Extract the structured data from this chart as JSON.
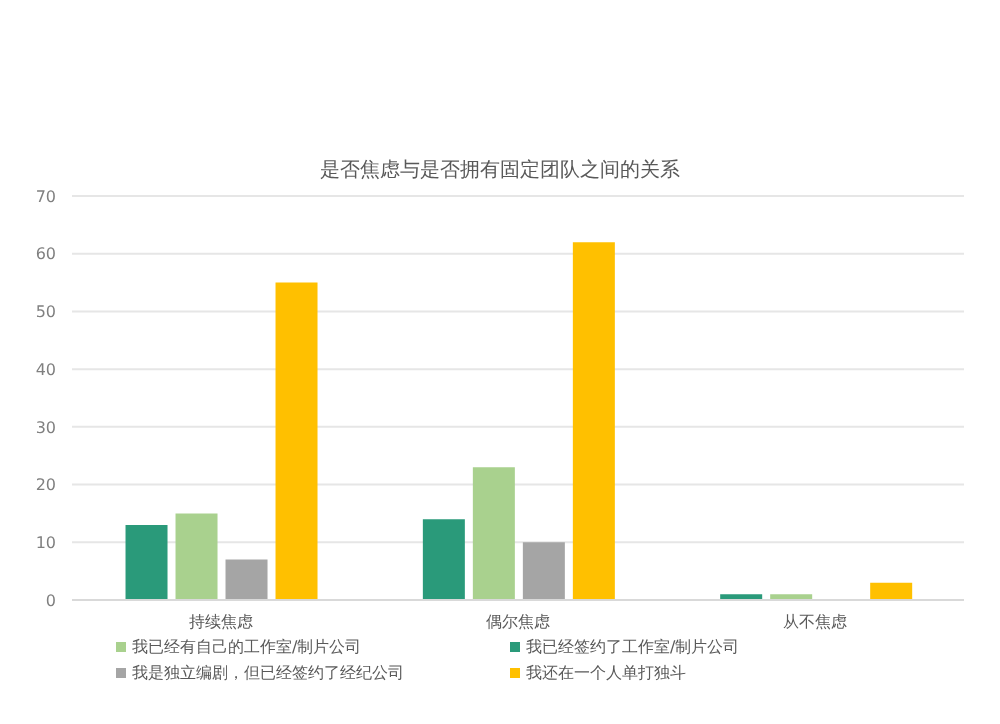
{
  "chart_data": {
    "type": "bar",
    "title": "是否焦虑与是否拥有固定团队之间的关系",
    "categories": [
      "持续焦虑",
      "偶尔焦虑",
      "从不焦虑"
    ],
    "series": [
      {
        "name": "我已经签约了工作室/制片公司",
        "color": "#2a9a7a",
        "values": [
          13,
          14,
          1
        ]
      },
      {
        "name": "我已经有自己的工作室/制片公司",
        "color": "#a9d18e",
        "values": [
          15,
          23,
          1
        ]
      },
      {
        "name": "我是独立编剧，但已经签约了经纪公司",
        "color": "#a5a5a5",
        "values": [
          7,
          10,
          0
        ]
      },
      {
        "name": "我还在一个人单打独斗",
        "color": "#ffc000",
        "values": [
          55,
          62,
          3
        ]
      }
    ],
    "ylim": [
      0,
      70
    ],
    "yticks": [
      0,
      10,
      20,
      30,
      40,
      50,
      60,
      70
    ],
    "grid": "y",
    "legend": "bottom"
  }
}
